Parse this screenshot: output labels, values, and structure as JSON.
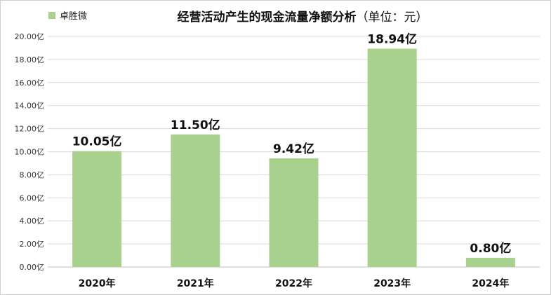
{
  "chart_data": {
    "type": "bar",
    "title": "经营活动产生的现金流量净额分析",
    "title_unit": "（单位：元）",
    "categories": [
      "2020年",
      "2021年",
      "2022年",
      "2023年",
      "2024年"
    ],
    "series": [
      {
        "name": "卓胜微",
        "values": [
          10.05,
          11.5,
          9.42,
          18.94,
          0.8
        ],
        "data_labels": [
          "10.05亿",
          "11.50亿",
          "9.42亿",
          "18.94亿",
          "0.80亿"
        ],
        "color": "#a9d18e"
      }
    ],
    "yticks": [
      "0.00亿",
      "2.00亿",
      "4.00亿",
      "6.00亿",
      "8.00亿",
      "10.00亿",
      "12.00亿",
      "14.00亿",
      "16.00亿",
      "18.00亿",
      "20.00亿"
    ],
    "ylim": [
      0,
      20
    ],
    "grid": true,
    "legend_position": "top-left"
  }
}
